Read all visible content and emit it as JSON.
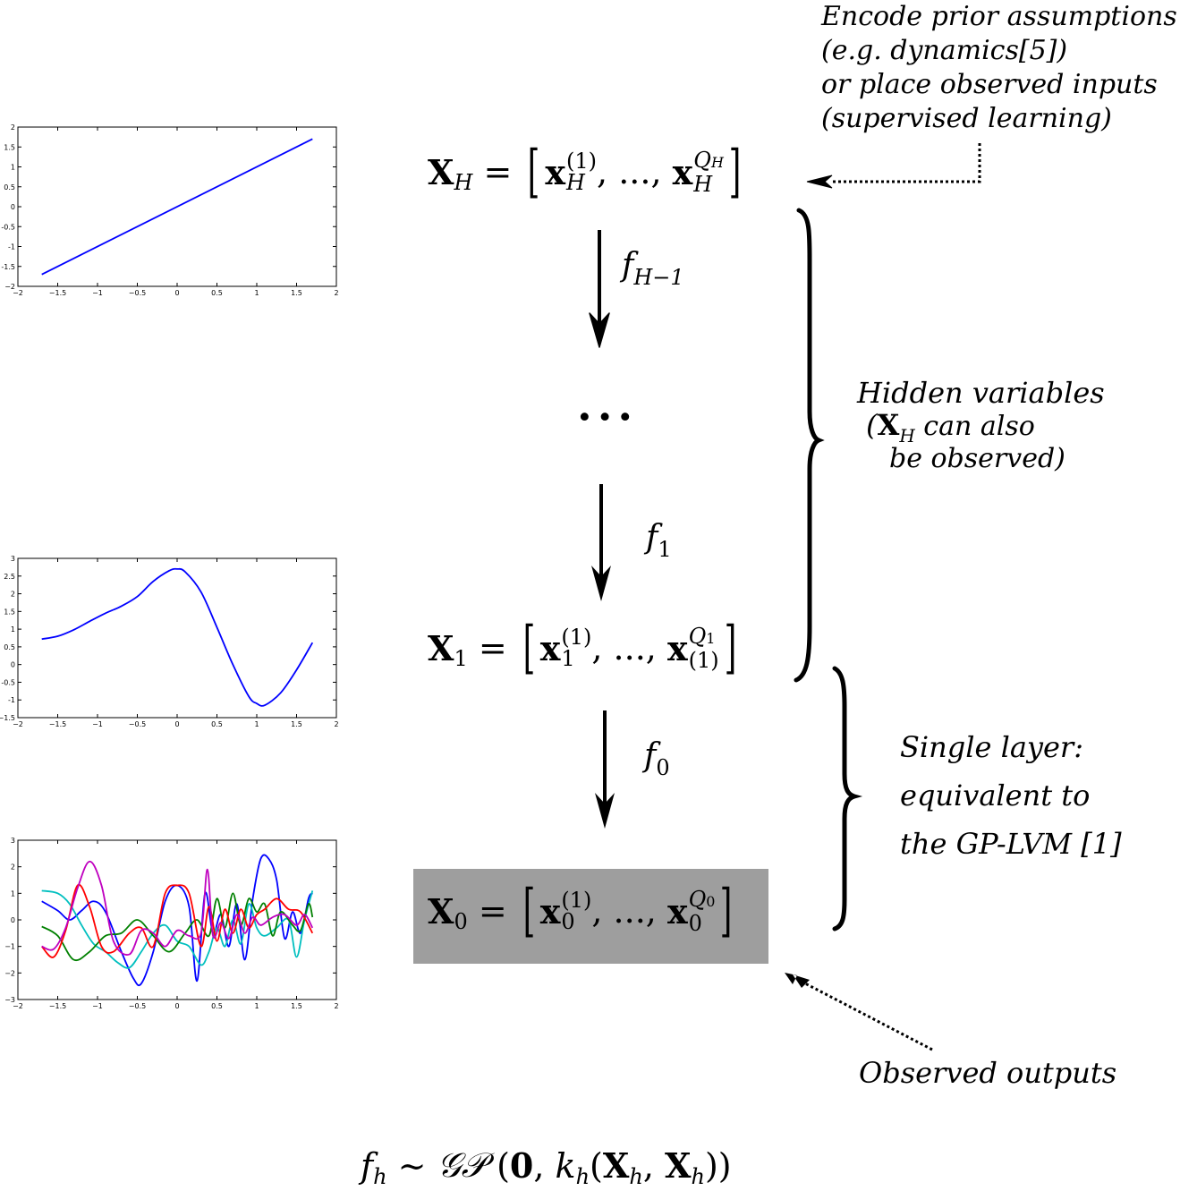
{
  "notes": {
    "prior": [
      "Encode prior assumptions",
      "(e.g.  dynamics[5])",
      "or place observed inputs",
      "(supervised learning)"
    ],
    "hidden": {
      "line1": "Hidden variables",
      "line2_open": "(",
      "line2_bold": "X",
      "line2_sub": "H",
      "line2_rest": " can also",
      "line3": "be observed)"
    },
    "single": [
      "Single layer:",
      "equivalent to",
      "the GP-LVM [1]"
    ],
    "observed": "Observed outputs"
  },
  "equations": {
    "xh": {
      "lhs": "X",
      "lhs_sub": "H",
      "eq": " = ",
      "x": "x",
      "sup1": "(1)",
      "sub1": "H",
      "dots": ", ..., ",
      "sup2": "Q",
      "sup2_sub": "H",
      "sub2": "H"
    },
    "x1": {
      "lhs": "X",
      "lhs_sub": "1",
      "eq": " = ",
      "x": "x",
      "sup1": "(1)",
      "sub1": "1",
      "dots": ", ..., ",
      "sup2": "Q",
      "sup2_sub": "1",
      "sub2": "(1)"
    },
    "x0": {
      "lhs": "X",
      "lhs_sub": "0",
      "eq": " = ",
      "x": "x",
      "sup1": "(1)",
      "sub1": "0",
      "dots": ", ..., ",
      "sup2": "Q",
      "sup2_sub": "0",
      "sub2": "0"
    },
    "ellipsis": "···",
    "bottom": {
      "f": "f",
      "fsub": "h",
      "sim": " ∼ ",
      "gp": "𝒢𝒫",
      "open": " (",
      "zero": "0",
      "comma": ", ",
      "k": "k",
      "ksub": "h",
      "paren": "(",
      "X1": "X",
      "X1sub": "h",
      "c2": ", ",
      "X2": "X",
      "X2sub": "h",
      "close": "))"
    }
  },
  "arrow_labels": [
    {
      "f": "f",
      "sub": "H−1"
    },
    {
      "f": "f",
      "sub": "1"
    },
    {
      "f": "f",
      "sub": "0"
    }
  ],
  "chart_data": [
    {
      "type": "line",
      "xlim": [
        -2,
        2
      ],
      "ylim": [
        -2,
        2
      ],
      "xticks": [
        "−2",
        "−1.5",
        "−1",
        "−0.5",
        "0",
        "0.5",
        "1",
        "1.5",
        "2"
      ],
      "yticks": [
        "2",
        "1.5",
        "1",
        "0.5",
        "0",
        "-0.5",
        "-1",
        "-1.5",
        "−2"
      ],
      "series": [
        {
          "color": "#0000ff",
          "x": [
            -1.7,
            1.7
          ],
          "y": [
            -1.7,
            1.7
          ]
        }
      ]
    },
    {
      "type": "line",
      "xlim": [
        -2,
        2
      ],
      "ylim": [
        -1.5,
        3
      ],
      "xticks": [
        "−2",
        "−1.5",
        "−1",
        "−0.5",
        "0",
        "0.5",
        "1",
        "1.5",
        "2"
      ],
      "yticks": [
        "3",
        "2.5",
        "2",
        "1.5",
        "1",
        "0.5",
        "0",
        "-0.5",
        "-1",
        "−1.5"
      ],
      "series": [
        {
          "color": "#0000ff",
          "x": [
            -1.7,
            -1.5,
            -1.3,
            -1.1,
            -0.9,
            -0.7,
            -0.5,
            -0.3,
            -0.1,
            0.0,
            0.1,
            0.3,
            0.5,
            0.7,
            0.9,
            1.0,
            1.1,
            1.3,
            1.5,
            1.7
          ],
          "y": [
            0.72,
            0.8,
            0.98,
            1.22,
            1.45,
            1.65,
            1.92,
            2.35,
            2.65,
            2.7,
            2.62,
            2.05,
            1.05,
            0.0,
            -0.9,
            -1.1,
            -1.15,
            -0.8,
            -0.15,
            0.62
          ]
        }
      ]
    },
    {
      "type": "line",
      "xlim": [
        -2,
        2
      ],
      "ylim": [
        -3,
        3
      ],
      "xticks": [
        "−2",
        "−1.5",
        "−1",
        "−0.5",
        "0",
        "0.5",
        "1",
        "1.5",
        "2"
      ],
      "yticks": [
        "3",
        "2",
        "1",
        "0",
        "−1",
        "−2",
        "−3"
      ],
      "series": [
        {
          "color": "#0000ff",
          "x": [
            -1.7,
            -1.5,
            -1.35,
            -1.2,
            -1.05,
            -0.9,
            -0.7,
            -0.55,
            -0.45,
            -0.3,
            -0.15,
            0.0,
            0.15,
            0.25,
            0.35,
            0.45,
            0.55,
            0.65,
            0.75,
            0.85,
            0.95,
            1.05,
            1.15,
            1.25,
            1.35,
            1.45,
            1.55,
            1.65,
            1.7
          ],
          "y": [
            0.7,
            0.35,
            0.0,
            0.35,
            0.7,
            0.3,
            -1.2,
            -2.2,
            -2.4,
            -1.2,
            0.7,
            1.3,
            0.5,
            -2.3,
            1.0,
            -0.5,
            0.2,
            -1.0,
            0.6,
            -1.5,
            0.8,
            2.3,
            2.3,
            1.5,
            -0.7,
            0.3,
            -0.5,
            0.8,
            1.0
          ]
        },
        {
          "color": "#00bfbf",
          "x": [
            -1.7,
            -1.5,
            -1.35,
            -1.2,
            -1.05,
            -0.9,
            -0.75,
            -0.6,
            -0.45,
            -0.3,
            -0.15,
            0.0,
            0.15,
            0.3,
            0.4,
            0.5,
            0.6,
            0.7,
            0.8,
            0.9,
            1.0,
            1.1,
            1.25,
            1.4,
            1.5,
            1.6,
            1.7
          ],
          "y": [
            1.1,
            1.0,
            0.6,
            -0.2,
            -0.9,
            -1.2,
            -1.6,
            -1.8,
            -1.2,
            -0.5,
            -0.2,
            -0.8,
            -1.0,
            -1.7,
            -1.2,
            -0.3,
            -1.0,
            0.0,
            -0.9,
            0.6,
            -0.3,
            -0.6,
            -0.3,
            0.0,
            -1.4,
            0.0,
            1.1
          ]
        },
        {
          "color": "#008000",
          "x": [
            -1.7,
            -1.5,
            -1.3,
            -1.1,
            -0.9,
            -0.7,
            -0.5,
            -0.3,
            -0.1,
            0.1,
            0.25,
            0.4,
            0.5,
            0.6,
            0.7,
            0.8,
            0.9,
            1.0,
            1.1,
            1.2,
            1.3,
            1.45,
            1.55,
            1.65,
            1.7
          ],
          "y": [
            -0.25,
            -0.6,
            -1.5,
            -1.2,
            -0.6,
            -0.5,
            0.0,
            -0.6,
            -1.2,
            -0.5,
            0.0,
            -0.6,
            0.8,
            -0.3,
            1.0,
            -0.2,
            0.8,
            0.3,
            0.6,
            -0.6,
            0.3,
            -0.2,
            -0.4,
            0.6,
            0.1
          ]
        },
        {
          "color": "#ff0000",
          "x": [
            -1.7,
            -1.55,
            -1.4,
            -1.25,
            -1.1,
            -0.95,
            -0.8,
            -0.6,
            -0.45,
            -0.3,
            -0.15,
            0.0,
            0.15,
            0.3,
            0.4,
            0.5,
            0.6,
            0.7,
            0.8,
            0.9,
            1.0,
            1.1,
            1.25,
            1.4,
            1.55,
            1.7
          ],
          "y": [
            -1.0,
            -1.4,
            -0.4,
            1.3,
            0.5,
            -1.0,
            -1.2,
            -0.5,
            -0.3,
            -1.0,
            1.0,
            1.3,
            1.0,
            -1.0,
            0.5,
            -0.8,
            0.4,
            -0.5,
            0.4,
            -0.3,
            0.2,
            0.4,
            0.8,
            0.4,
            0.3,
            -0.5
          ]
        },
        {
          "color": "#bf00bf",
          "x": [
            -1.7,
            -1.55,
            -1.4,
            -1.25,
            -1.1,
            -0.95,
            -0.8,
            -0.6,
            -0.45,
            -0.3,
            -0.15,
            0.0,
            0.15,
            0.3,
            0.38,
            0.45,
            0.55,
            0.65,
            0.75,
            0.85,
            0.95,
            1.05,
            1.2,
            1.35,
            1.5,
            1.6,
            1.7
          ],
          "y": [
            -1.0,
            -1.1,
            -0.3,
            1.2,
            2.2,
            1.3,
            -0.8,
            -1.3,
            -0.4,
            -0.5,
            -1.0,
            -0.4,
            -0.6,
            -0.5,
            1.9,
            -0.6,
            -0.1,
            -0.7,
            0.2,
            -0.5,
            0.1,
            -0.2,
            0.1,
            0.2,
            -0.2,
            0.2,
            -0.3
          ]
        }
      ]
    }
  ]
}
